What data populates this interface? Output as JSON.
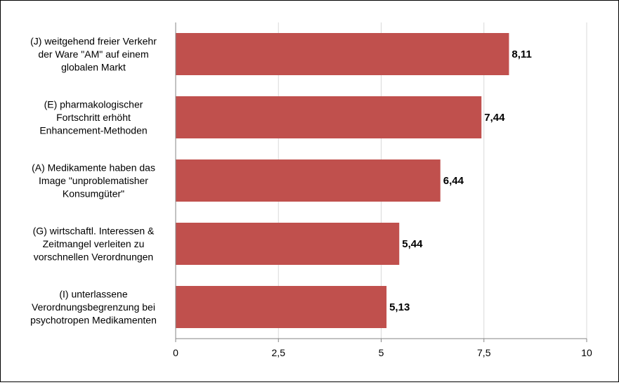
{
  "chart_data": {
    "type": "bar",
    "orientation": "horizontal",
    "title": "",
    "xlabel": "",
    "ylabel": "",
    "xlim": [
      0,
      10
    ],
    "ticks": [
      0,
      2.5,
      5,
      7.5,
      10
    ],
    "tick_labels": [
      "0",
      "2,5",
      "5",
      "7,5",
      "10"
    ],
    "grid": "vertical",
    "bar_color": "#c0504d",
    "categories": [
      [
        "(J) weitgehend freier Verkehr",
        "der Ware \"AM\" auf einem",
        "globalen Markt"
      ],
      [
        "(E) pharmakologischer",
        "Fortschritt erhöht",
        "Enhancement-Methoden"
      ],
      [
        "(A) Medikamente haben das",
        "Image \"unproblematisher",
        "Konsumgüter\""
      ],
      [
        "(G) wirtschaftl. Interessen &",
        "Zeitmangel verleiten zu",
        "vorschnellen Verordnungen"
      ],
      [
        "(I) unterlassene",
        "Verordnungsbegrenzung bei",
        "psychotropen Medikamenten"
      ]
    ],
    "values": [
      8.11,
      7.44,
      6.44,
      5.44,
      5.13
    ],
    "value_labels": [
      "8,11",
      "7,44",
      "6,44",
      "5,44",
      "5,13"
    ]
  }
}
